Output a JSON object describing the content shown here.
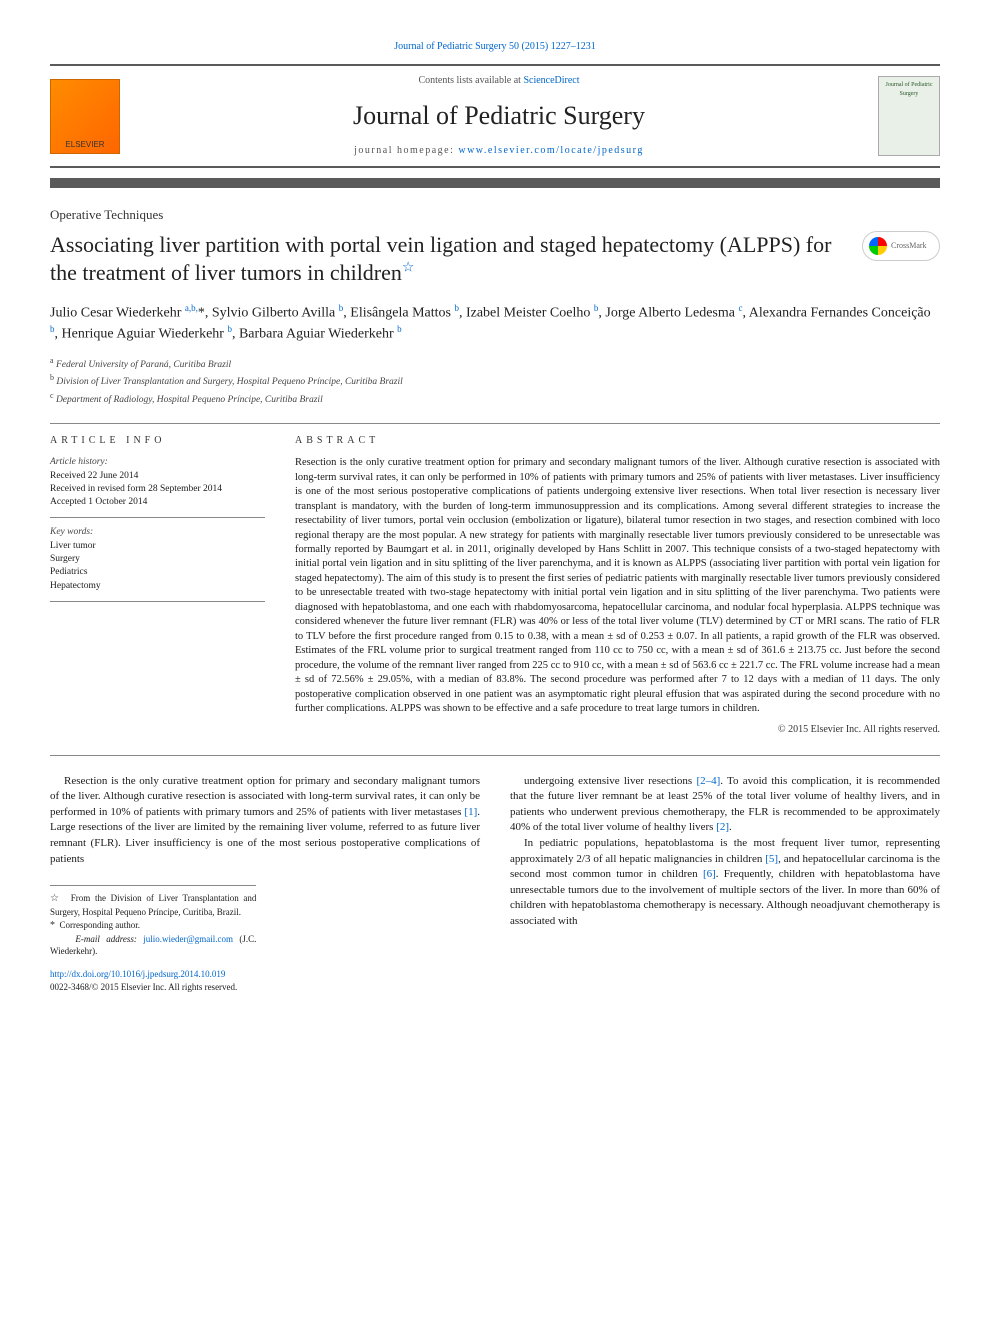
{
  "top_link": "Journal of Pediatric Surgery 50 (2015) 1227–1231",
  "header": {
    "elsevier": "ELSEVIER",
    "contents_prefix": "Contents lists available at ",
    "contents_link": "ScienceDirect",
    "journal_name": "Journal of Pediatric Surgery",
    "homepage_prefix": "journal homepage: ",
    "homepage_link": "www.elsevier.com/locate/jpedsurg",
    "cover_text": "Journal of\nPediatric Surgery"
  },
  "article_type": "Operative Techniques",
  "title": "Associating liver partition with portal vein ligation and staged hepatectomy (ALPPS) for the treatment of liver tumors in children",
  "crossmark": "CrossMark",
  "authors_html": "Julio Cesar Wiederkehr <sup>a,b,</sup>*, Sylvio Gilberto Avilla <sup>b</sup>, Elisângela Mattos <sup>b</sup>, Izabel Meister Coelho <sup>b</sup>, Jorge Alberto Ledesma <sup>c</sup>, Alexandra Fernandes Conceição <sup>b</sup>, Henrique Aguiar Wiederkehr <sup>b</sup>, Barbara Aguiar Wiederkehr <sup>b</sup>",
  "affiliations": {
    "a": "Federal University of Paraná, Curitiba Brazil",
    "b": "Division of Liver Transplantation and Surgery, Hospital Pequeno Príncipe, Curitiba Brazil",
    "c": "Department of Radiology, Hospital Pequeno Príncipe, Curitiba Brazil"
  },
  "article_info": {
    "heading": "ARTICLE INFO",
    "history_label": "Article history:",
    "received": "Received 22 June 2014",
    "revised": "Received in revised form 28 September 2014",
    "accepted": "Accepted 1 October 2014",
    "keywords_label": "Key words:",
    "keywords": [
      "Liver tumor",
      "Surgery",
      "Pediatrics",
      "Hepatectomy"
    ]
  },
  "abstract": {
    "heading": "ABSTRACT",
    "text": "Resection is the only curative treatment option for primary and secondary malignant tumors of the liver. Although curative resection is associated with long-term survival rates, it can only be performed in 10% of patients with primary tumors and 25% of patients with liver metastases. Liver insufficiency is one of the most serious postoperative complications of patients undergoing extensive liver resections. When total liver resection is necessary liver transplant is mandatory, with the burden of long-term immunosuppression and its complications. Among several different strategies to increase the resectability of liver tumors, portal vein occlusion (embolization or ligature), bilateral tumor resection in two stages, and resection combined with loco regional therapy are the most popular. A new strategy for patients with marginally resectable liver tumors previously considered to be unresectable was formally reported by Baumgart et al. in 2011, originally developed by Hans Schlitt in 2007. This technique consists of a two-staged hepatectomy with initial portal vein ligation and in situ splitting of the liver parenchyma, and it is known as ALPPS (associating liver partition with portal vein ligation for staged hepatectomy). The aim of this study is to present the first series of pediatric patients with marginally resectable liver tumors previously considered to be unresectable treated with two-stage hepatectomy with initial portal vein ligation and in situ splitting of the liver parenchyma. Two patients were diagnosed with hepatoblastoma, and one each with rhabdomyosarcoma, hepatocellular carcinoma, and nodular focal hyperplasia. ALPPS technique was considered whenever the future liver remnant (FLR) was 40% or less of the total liver volume (TLV) determined by CT or MRI scans. The ratio of FLR to TLV before the first procedure ranged from 0.15 to 0.38, with a mean ± sd of 0.253 ± 0.07. In all patients, a rapid growth of the FLR was observed. Estimates of the FRL volume prior to surgical treatment ranged from 110 cc to 750 cc, with a mean ± sd of 361.6 ± 213.75 cc. Just before the second procedure, the volume of the remnant liver ranged from 225 cc to 910 cc, with a mean ± sd of 563.6 cc ± 221.7 cc. The FRL volume increase had a mean ± sd of 72.56% ± 29.05%, with a median of 83.8%. The second procedure was performed after 7 to 12 days with a median of 11 days. The only postoperative complication observed in one patient was an asymptomatic right pleural effusion that was aspirated during the second procedure with no further complications. ALPPS was shown to be effective and a safe procedure to treat large tumors in children.",
    "copyright": "© 2015 Elsevier Inc. All rights reserved."
  },
  "body": {
    "p1": "Resection is the only curative treatment option for primary and secondary malignant tumors of the liver. Although curative resection is associated with long-term survival rates, it can only be performed in 10% of patients with primary tumors and 25% of patients with liver metastases [1]. Large resections of the liver are limited by the remaining liver volume, referred to as future liver remnant (FLR). Liver insufficiency is one of the most serious postoperative complications of patients",
    "p1_cont": "undergoing extensive liver resections [2–4]. To avoid this complication, it is recommended that the future liver remnant be at least 25% of the total liver volume of healthy livers, and in patients who underwent previous chemotherapy, the FLR is recommended to be approximately 40% of the total liver volume of healthy livers [2].",
    "p2": "In pediatric populations, hepatoblastoma is the most frequent liver tumor, representing approximately 2/3 of all hepatic malignancies in children [5], and hepatocellular carcinoma is the second most common tumor in children [6]. Frequently, children with hepatoblastoma have unresectable tumors due to the involvement of multiple sectors of the liver. In more than 60% of children with hepatoblastoma chemotherapy is necessary. Although neoadjuvant chemotherapy is associated with"
  },
  "footnotes": {
    "star": "From the Division of Liver Transplantation and Surgery, Hospital Pequeno Príncipe, Curitiba, Brazil.",
    "corr": "Corresponding author.",
    "email_label": "E-mail address:",
    "email": "julio.wieder@gmail.com",
    "email_person": "(J.C. Wiederkehr)."
  },
  "doi": {
    "link": "http://dx.doi.org/10.1016/j.jpedsurg.2014.10.019",
    "issn_line": "0022-3468/© 2015 Elsevier Inc. All rights reserved."
  },
  "colors": {
    "link": "#0066cc",
    "text": "#1a1a1a",
    "rule": "#5a5a5a"
  }
}
